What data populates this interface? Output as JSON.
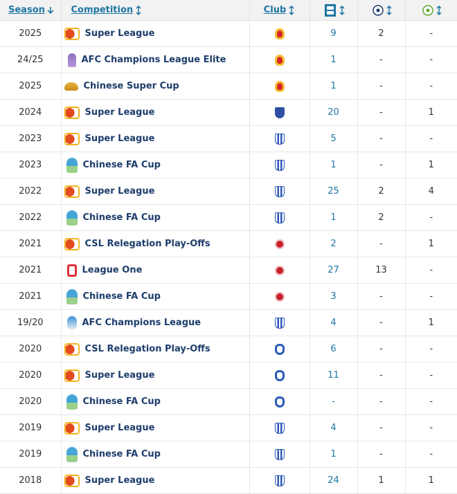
{
  "table": {
    "headers": [
      "Season",
      "Competition",
      "Club"
    ],
    "rows": [
      [
        "2025",
        "Super League",
        9,
        2,
        "-"
      ],
      [
        "24/25",
        "AFC Champions League Elite",
        1,
        "-",
        "-"
      ],
      [
        "2025",
        "Chinese Super Cup",
        1,
        "-",
        "-"
      ],
      [
        "2024",
        "Super League",
        20,
        "-",
        1
      ],
      [
        "2023",
        "Super League",
        5,
        "-",
        "-"
      ],
      [
        "2023",
        "Chinese FA Cup",
        1,
        "-",
        1
      ],
      [
        "2022",
        "Super League",
        25,
        2,
        4
      ],
      [
        "2022",
        "Chinese FA Cup",
        1,
        2,
        "-"
      ],
      [
        "2021",
        "CSL Relegation Play-Offs",
        2,
        "-",
        1
      ],
      [
        "2021",
        "League One",
        27,
        13,
        "-"
      ],
      [
        "2021",
        "Chinese FA Cup",
        3,
        "-",
        "-"
      ],
      [
        "19/20",
        "AFC Champions League",
        4,
        "-",
        1
      ],
      [
        "2020",
        "CSL Relegation Play-Offs",
        6,
        "-",
        "-"
      ],
      [
        "2020",
        "Super League",
        11,
        "-",
        "-"
      ],
      [
        "2020",
        "Chinese FA Cup",
        "-",
        "-",
        "-"
      ],
      [
        "2019",
        "Super League",
        4,
        "-",
        "-"
      ],
      [
        "2019",
        "Chinese FA Cup",
        1,
        "-",
        "-"
      ],
      [
        "2018",
        "Super League",
        24,
        1,
        1
      ]
    ]
  }
}
